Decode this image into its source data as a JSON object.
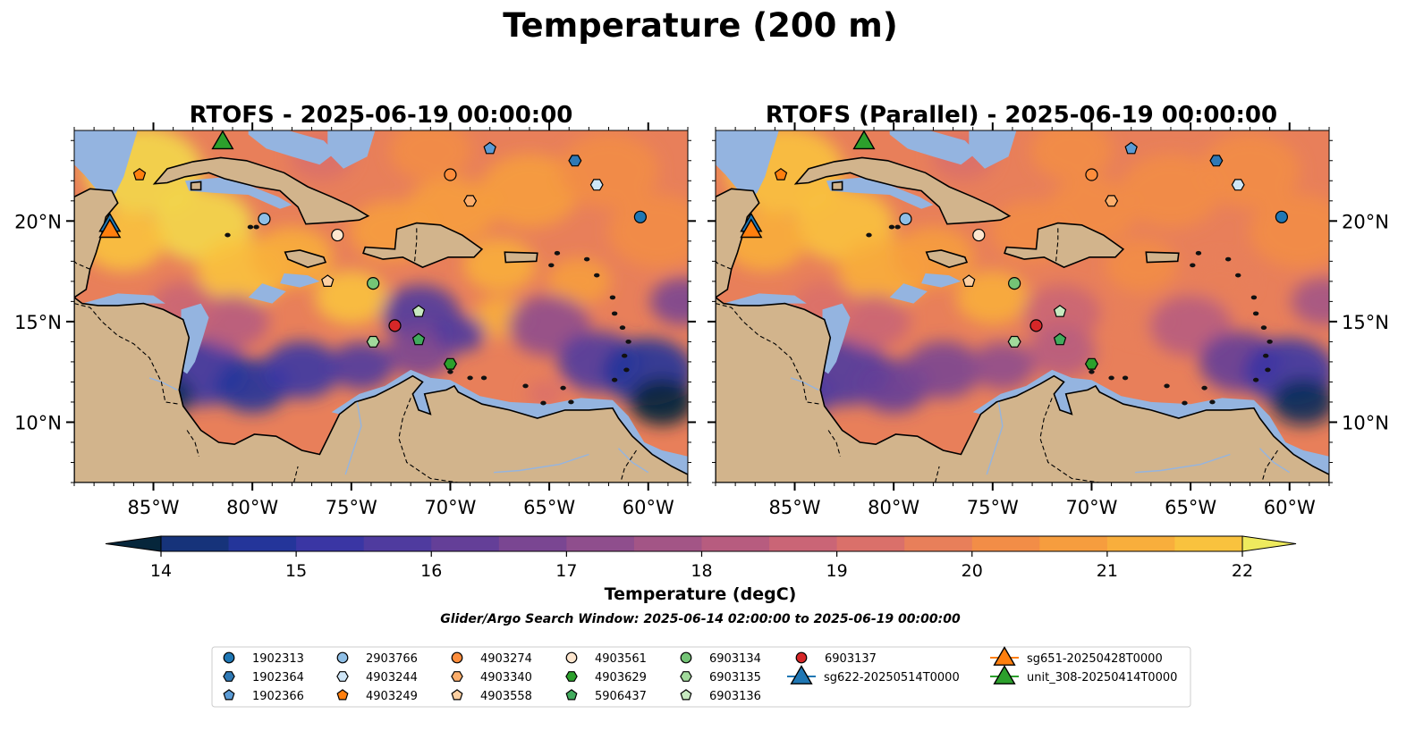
{
  "figure": {
    "suptitle": "Temperature (200 m)",
    "search_window": "Glider/Argo Search Window: 2025-06-14 02:00:00 to 2025-06-19 00:00:00"
  },
  "colors": {
    "land": "#d2b48c",
    "shelf": "#94b4e0",
    "cmap": [
      "#06263b",
      "#0c2d5a",
      "#16337a",
      "#24359a",
      "#3a36a4",
      "#4f3b9f",
      "#643f98",
      "#7a4692",
      "#8f4e8d",
      "#a35586",
      "#b75c7f",
      "#ca6576",
      "#da706a",
      "#e87f5a",
      "#f28d47",
      "#f69d3e",
      "#f8ae3c",
      "#f9c23e",
      "#f3d84a",
      "#eeea5e"
    ]
  },
  "chart_data": [
    {
      "type": "heatmap",
      "title": "RTOFS - 2025-06-19 00:00:00",
      "xlim": [
        -89,
        -58
      ],
      "ylim": [
        7,
        24.5
      ],
      "xticks": [
        "85°W",
        "80°W",
        "75°W",
        "70°W",
        "65°W",
        "60°W"
      ],
      "xtick_values": [
        -85,
        -80,
        -75,
        -70,
        -65,
        -60
      ],
      "yticks": [
        "20°N",
        "15°N",
        "10°N"
      ],
      "ytick_values": [
        20,
        15,
        10
      ],
      "ytick_side": "left"
    },
    {
      "type": "heatmap",
      "title": "RTOFS (Parallel) - 2025-06-19 00:00:00",
      "xlim": [
        -89,
        -58
      ],
      "ylim": [
        7,
        24.5
      ],
      "xticks": [
        "85°W",
        "80°W",
        "75°W",
        "70°W",
        "65°W",
        "60°W"
      ],
      "xtick_values": [
        -85,
        -80,
        -75,
        -70,
        -65,
        -60
      ],
      "yticks": [
        "20°N",
        "15°N",
        "10°N"
      ],
      "ytick_values": [
        20,
        15,
        10
      ],
      "ytick_side": "right"
    }
  ],
  "colorbar": {
    "label": "Temperature (degC)",
    "min": 14,
    "max": 22,
    "ticks": [
      "14",
      "15",
      "16",
      "17",
      "18",
      "19",
      "20",
      "21",
      "22"
    ],
    "tick_values": [
      14,
      15,
      16,
      17,
      18,
      19,
      20,
      21,
      22
    ]
  },
  "observations": [
    {
      "id": "1902313",
      "marker": "circle",
      "color": "#1f77b4",
      "lon": -60.4,
      "lat": 20.2
    },
    {
      "id": "1902364",
      "marker": "hexagon",
      "color": "#2f79b5",
      "lon": -63.7,
      "lat": 23.0
    },
    {
      "id": "1902366",
      "marker": "pentagon",
      "color": "#5b9bd5",
      "lon": -68.0,
      "lat": 23.6
    },
    {
      "id": "2903766",
      "marker": "circle",
      "color": "#8fbfe6",
      "lon": -79.4,
      "lat": 20.1
    },
    {
      "id": "4903244",
      "marker": "hexagon",
      "color": "#cfe6f7",
      "lon": -62.6,
      "lat": 21.8
    },
    {
      "id": "4903249",
      "marker": "pentagon",
      "color": "#ff7f0e",
      "lon": -85.7,
      "lat": 22.3
    },
    {
      "id": "4903274",
      "marker": "circle",
      "color": "#fd8d3c",
      "lon": -70.0,
      "lat": 22.3
    },
    {
      "id": "4903340",
      "marker": "hexagon",
      "color": "#fdae6b",
      "lon": -69.0,
      "lat": 21.0
    },
    {
      "id": "4903558",
      "marker": "pentagon",
      "color": "#fdd0a2",
      "lon": -76.2,
      "lat": 17.0
    },
    {
      "id": "4903561",
      "marker": "circle",
      "color": "#fee6ce",
      "lon": -75.7,
      "lat": 19.3
    },
    {
      "id": "4903629",
      "marker": "hexagon",
      "color": "#2ca02c",
      "lon": -70.0,
      "lat": 12.9
    },
    {
      "id": "5906437",
      "marker": "pentagon",
      "color": "#41ab5d",
      "lon": -71.6,
      "lat": 14.1
    },
    {
      "id": "6903134",
      "marker": "circle",
      "color": "#74c476",
      "lon": -73.9,
      "lat": 16.9
    },
    {
      "id": "6903135",
      "marker": "hexagon",
      "color": "#a1d99b",
      "lon": -73.9,
      "lat": 14.0
    },
    {
      "id": "6903136",
      "marker": "pentagon",
      "color": "#c7e9c0",
      "lon": -71.6,
      "lat": 15.5
    },
    {
      "id": "6903137",
      "marker": "circle",
      "color": "#d62728",
      "lon": -72.8,
      "lat": 14.8
    }
  ],
  "gliders": [
    {
      "id": "sg622-20250514T0000",
      "color": "#1f77b4",
      "lon": -87.2,
      "lat": 19.9
    },
    {
      "id": "sg651-20250428T0000",
      "color": "#ff7f0e",
      "lon": -87.2,
      "lat": 19.6
    },
    {
      "id": "unit_308-20250414T0000",
      "color": "#2ca02c",
      "lon": -81.5,
      "lat": 24.0
    }
  ]
}
